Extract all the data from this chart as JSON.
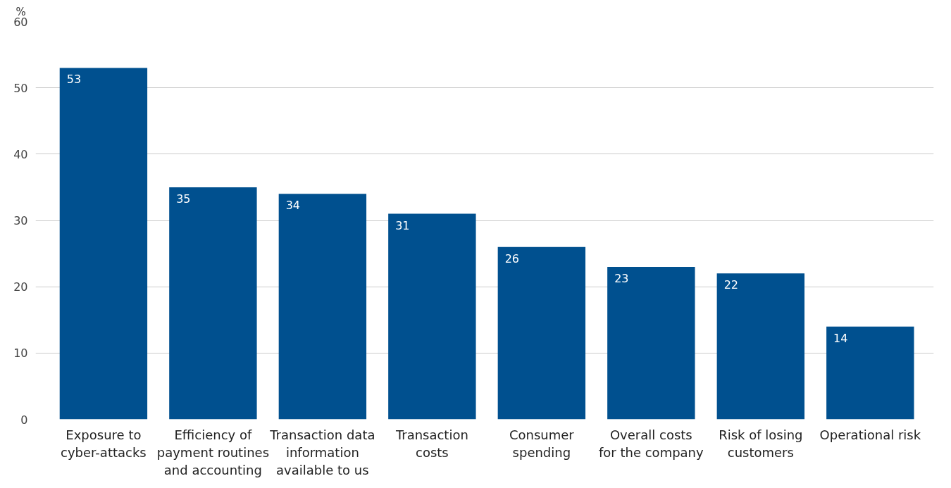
{
  "chart_data": {
    "type": "bar",
    "ylabel": "%",
    "categories": [
      "Exposure to cyber-attacks",
      "Efficiency of payment routines and accounting",
      "Transaction data information available to us",
      "Transaction costs",
      "Consumer spending",
      "Overall costs for the company",
      "Risk of losing customers",
      "Operational risk"
    ],
    "values": [
      53,
      35,
      34,
      31,
      26,
      23,
      22,
      14
    ],
    "color": "#00508f",
    "ylim": [
      0,
      60
    ],
    "yticks": [
      0,
      10,
      20,
      30,
      40,
      50,
      60
    ],
    "grid": "y",
    "data_labels": true
  }
}
